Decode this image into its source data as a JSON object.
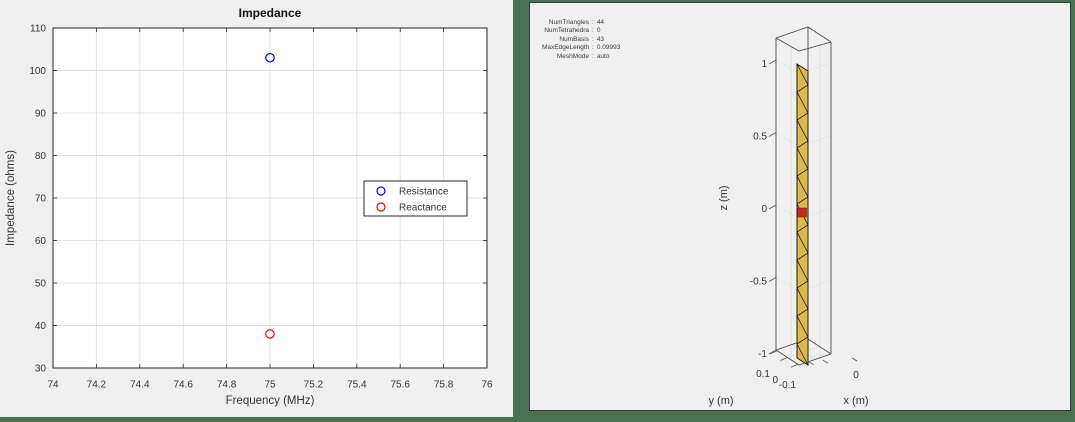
{
  "window": {
    "desktop_color": "#4A7250",
    "figure_background": "#F0F0F0",
    "figure_border_color": "#2E3C46",
    "plot_background": "#FFFFFF",
    "axis_color": "#262626",
    "grid_color": "#E0E0E0",
    "text_color": "#333333"
  },
  "chart_data": [
    {
      "type": "scatter",
      "title": "Impedance",
      "xlabel": "Frequency (MHz)",
      "ylabel": "Impedance (ohms)",
      "xlim": [
        74,
        76
      ],
      "ylim": [
        30,
        110
      ],
      "xticks": [
        "74",
        "74.2",
        "74.4",
        "74.6",
        "74.8",
        "75",
        "75.2",
        "75.4",
        "75.6",
        "75.8",
        "76"
      ],
      "yticks": [
        "30",
        "40",
        "50",
        "60",
        "70",
        "80",
        "90",
        "100",
        "110"
      ],
      "grid": true,
      "legend_position": "middle-right",
      "series": [
        {
          "name": "Resistance",
          "marker": "circle",
          "color": "#0000EE",
          "points": [
            [
              75,
              103
            ]
          ]
        },
        {
          "name": "Reactance",
          "marker": "circle",
          "color": "#EE0000",
          "points": [
            [
              75,
              38
            ]
          ]
        }
      ]
    },
    {
      "type": "mesh3d",
      "annotations": [
        {
          "label": "NumTriangles",
          "value": "44"
        },
        {
          "label": "NumTetrahedra",
          "value": "0"
        },
        {
          "label": "NumBasis",
          "value": "43"
        },
        {
          "label": "MaxEdgeLength",
          "value": "0.09993"
        },
        {
          "label": "MeshMode",
          "value": "auto"
        }
      ],
      "separator": ":",
      "xlabel": "x (m)",
      "ylabel": "y (m)",
      "zlabel": "z (m)",
      "zticks": [
        "1",
        "0.5",
        "0",
        "-0.5",
        "-1"
      ],
      "yticks": [
        "0.1",
        "0",
        "-0.1"
      ],
      "xticks": [
        "0"
      ],
      "num_triangles": 44,
      "mesh_fill_color": "#DDB84A",
      "mesh_edge_color": "#1C1C1C",
      "feed_color": "#C42B1C"
    }
  ]
}
